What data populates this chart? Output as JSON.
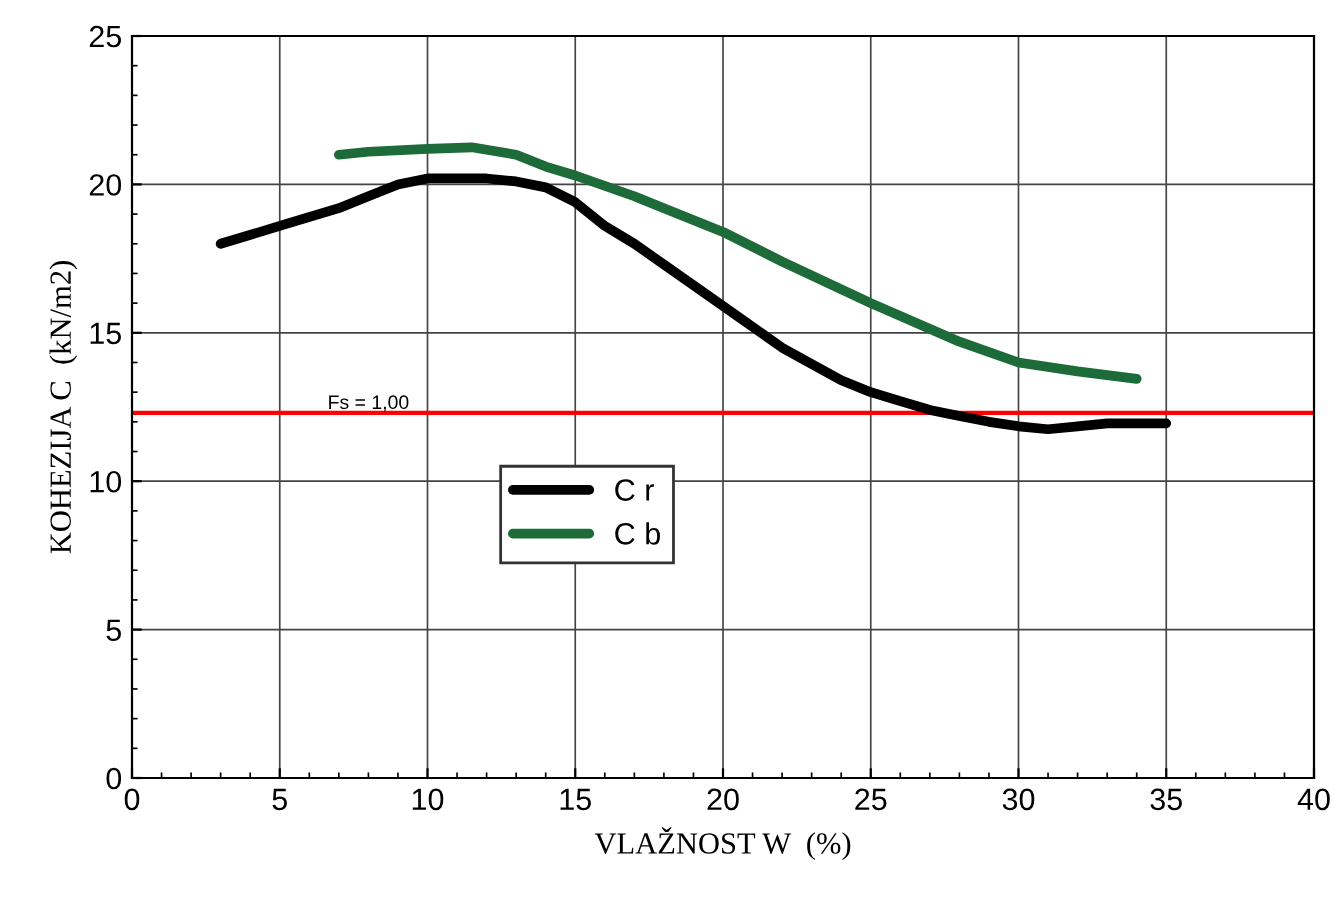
{
  "chart_data": {
    "type": "line",
    "xlabel": "VLAŽNOST W  (%)",
    "ylabel": "KOHEZIJA C  (kN/m2)",
    "xlim": [
      0,
      40
    ],
    "xticks": [
      0,
      5,
      10,
      15,
      20,
      25,
      30,
      35,
      40
    ],
    "ylim": [
      0,
      25
    ],
    "yticks": [
      0,
      5,
      10,
      15,
      20,
      25
    ],
    "grid": true,
    "legend": "center",
    "line_style": "solid",
    "marker": "none",
    "series": [
      {
        "name": "C r",
        "color": "#000000",
        "x": [
          3,
          5,
          7,
          8,
          9,
          10,
          11,
          12,
          13,
          14,
          15,
          16,
          17,
          18,
          20,
          22,
          24,
          25,
          26,
          27,
          28,
          29,
          30,
          31,
          32,
          33,
          34,
          35
        ],
        "values": [
          18.0,
          18.6,
          19.2,
          19.6,
          20.0,
          20.2,
          20.2,
          20.2,
          20.1,
          19.9,
          19.4,
          18.6,
          18.0,
          17.3,
          15.9,
          14.5,
          13.4,
          13.0,
          12.7,
          12.4,
          12.2,
          12.0,
          11.85,
          11.75,
          11.85,
          11.95,
          11.95,
          11.95
        ]
      },
      {
        "name": "C b",
        "color": "#1e6b3a",
        "x": [
          7,
          8,
          10,
          11.5,
          13,
          14,
          15,
          17,
          18,
          20,
          22,
          25,
          28,
          30,
          32,
          34
        ],
        "values": [
          21.0,
          21.1,
          21.2,
          21.25,
          21.0,
          20.6,
          20.3,
          19.6,
          19.2,
          18.4,
          17.4,
          16.0,
          14.7,
          14.0,
          13.7,
          13.45
        ]
      }
    ],
    "ref_lines": [
      {
        "axis": "y",
        "value": 12.3,
        "color": "#ff0000"
      }
    ],
    "annotations": [
      "Fs = 1,00"
    ]
  }
}
